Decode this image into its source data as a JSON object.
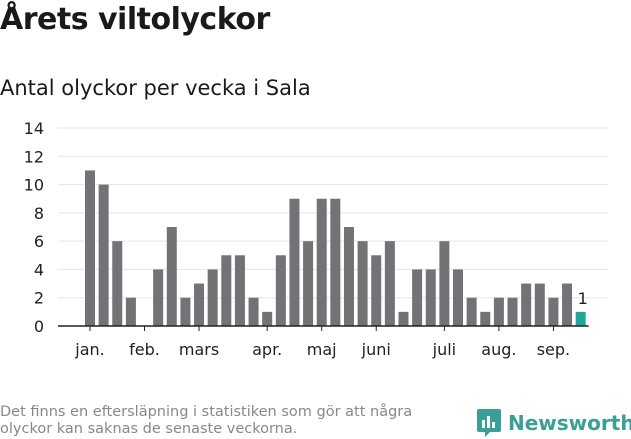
{
  "header": {
    "title": "Årets viltolyckor",
    "subtitle": "Antal olyckor per vecka i Sala"
  },
  "footer": {
    "note": "Det finns en eftersläpning i statistiken som gör att några olyckor kan saknas de senaste veckorna.",
    "brand": "Newsworthy"
  },
  "colors": {
    "bar": "#737377",
    "highlight": "#1fa89a",
    "grid": "#e5e5e5",
    "brand": "#3a9f96"
  },
  "chart_data": {
    "type": "bar",
    "title": "Antal olyckor per vecka i Sala",
    "xlabel": "",
    "ylabel": "",
    "ylim": [
      0,
      14
    ],
    "yticks": [
      0,
      2,
      4,
      6,
      8,
      10,
      12,
      14
    ],
    "grid": true,
    "values": [
      11,
      10,
      6,
      2,
      0,
      4,
      7,
      2,
      3,
      4,
      5,
      5,
      2,
      1,
      5,
      9,
      6,
      9,
      9,
      7,
      6,
      5,
      6,
      1,
      4,
      4,
      6,
      4,
      2,
      1,
      2,
      2,
      3,
      3,
      2,
      3,
      1
    ],
    "highlight_index": 36,
    "highlight_label": "1",
    "month_labels": [
      {
        "label": "jan.",
        "week_index": 0
      },
      {
        "label": "feb.",
        "week_index": 4
      },
      {
        "label": "mars",
        "week_index": 8
      },
      {
        "label": "apr.",
        "week_index": 13
      },
      {
        "label": "maj",
        "week_index": 17
      },
      {
        "label": "juni",
        "week_index": 21
      },
      {
        "label": "juli",
        "week_index": 26
      },
      {
        "label": "aug.",
        "week_index": 30
      },
      {
        "label": "sep.",
        "week_index": 34
      }
    ]
  }
}
